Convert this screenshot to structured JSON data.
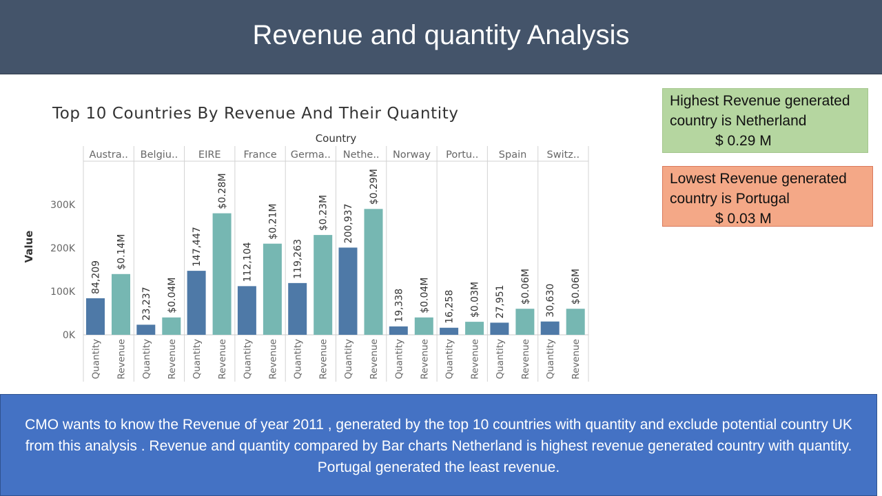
{
  "header": {
    "title": "Revenue and quantity Analysis"
  },
  "callouts": {
    "highest": {
      "line1": "Highest Revenue generated",
      "line2": "country  is Netherland",
      "amount": "$ 0.29 M",
      "color": "#b5d6a0"
    },
    "lowest": {
      "line1": "Lowest Revenue generated",
      "line2": "country  is Portugal",
      "amount": "$ 0.03 M",
      "color": "#f4a887"
    }
  },
  "summary": {
    "text": "CMO wants to know the Revenue of year 2011 , generated by the top 10 countries with quantity and exclude potential country UK from this analysis .  Revenue and quantity compared by Bar charts Netherland is highest revenue generated country with quantity. Portugal generated the least revenue.",
    "color": "#4472c4"
  },
  "chart_data": {
    "type": "bar",
    "title": "Top 10 Countries By Revenue And  Their Quantity",
    "column_header": "Country",
    "ylabel": "Value",
    "ylim": [
      0,
      340000
    ],
    "yticks": [
      {
        "value": 0,
        "label": "0K"
      },
      {
        "value": 100000,
        "label": "100K"
      },
      {
        "value": 200000,
        "label": "200K"
      },
      {
        "value": 300000,
        "label": "300K"
      }
    ],
    "categories": [
      "Austra..",
      "Belgiu..",
      "EIRE",
      "France",
      "Germa..",
      "Nethe..",
      "Norway",
      "Portu..",
      "Spain",
      "Switz.."
    ],
    "measures": [
      "Quantity",
      "Revenue"
    ],
    "series": [
      {
        "name": "Quantity",
        "color": "#4e79a7",
        "values": [
          84209,
          23237,
          147447,
          112104,
          119263,
          200937,
          19338,
          16258,
          27951,
          30630
        ],
        "labels": [
          "84,209",
          "23,237",
          "147,447",
          "112,104",
          "119,263",
          "200,937",
          "19,338",
          "16,258",
          "27,951",
          "30,630"
        ]
      },
      {
        "name": "Revenue",
        "color": "#76b7b2",
        "values": [
          140000,
          40000,
          280000,
          210000,
          230000,
          290000,
          40000,
          30000,
          60000,
          60000
        ],
        "labels": [
          "$0.14M",
          "$0.04M",
          "$0.28M",
          "$0.21M",
          "$0.23M",
          "$0.29M",
          "$0.04M",
          "$0.03M",
          "$0.06M",
          "$0.06M"
        ]
      }
    ],
    "grid": false,
    "legend": "none"
  }
}
